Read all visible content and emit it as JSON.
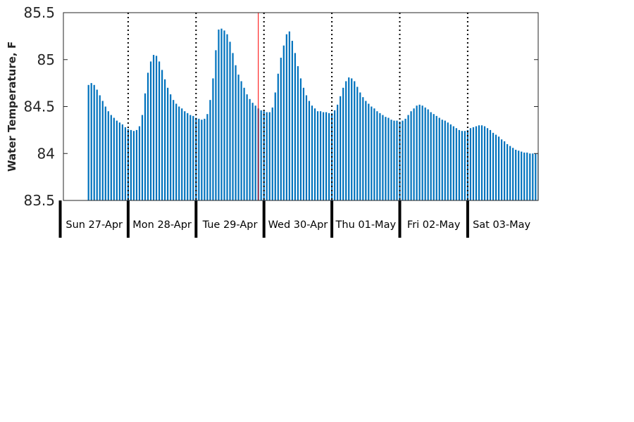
{
  "chart_data": {
    "type": "bar",
    "title": "",
    "xlabel": "",
    "ylabel": "Water Temperature, F",
    "ylim": [
      83.5,
      85.5
    ],
    "yticks": [
      "83.5",
      "84",
      "84.5",
      "85",
      "85.5"
    ],
    "grid": false,
    "legend": "none",
    "bar_color": "#0072bd",
    "interval_hours": 1,
    "start": "2020-04-27T10:00",
    "day_labels": [
      "Sun 27-Apr",
      "Mon 28-Apr",
      "Tue 29-Apr",
      "Wed 30-Apr",
      "Thu 01-May",
      "Fri 02-May",
      "Sat 03-May"
    ],
    "day_separators": [
      "2020-04-28T00:00",
      "2020-04-29T00:00",
      "2020-04-30T00:00",
      "2020-05-01T00:00",
      "2020-05-02T00:00",
      "2020-05-03T00:00"
    ],
    "current_time_marker": {
      "time": "2020-04-29T22:00",
      "color": "#ff0000"
    },
    "values": [
      84.73,
      84.75,
      84.73,
      84.68,
      84.62,
      84.56,
      84.5,
      84.45,
      84.41,
      84.38,
      84.35,
      84.33,
      84.31,
      84.28,
      84.26,
      84.25,
      84.24,
      84.25,
      84.29,
      84.41,
      84.64,
      84.86,
      84.98,
      85.05,
      85.04,
      84.98,
      84.89,
      84.79,
      84.7,
      84.63,
      84.57,
      84.53,
      84.5,
      84.48,
      84.45,
      84.43,
      84.41,
      84.4,
      84.38,
      84.37,
      84.36,
      84.37,
      84.42,
      84.57,
      84.8,
      85.1,
      85.32,
      85.33,
      85.31,
      85.27,
      85.19,
      85.07,
      84.94,
      84.84,
      84.77,
      84.7,
      84.63,
      84.58,
      84.54,
      84.51,
      84.48,
      84.46,
      84.45,
      84.44,
      84.44,
      84.49,
      84.65,
      84.85,
      85.02,
      85.15,
      85.27,
      85.3,
      85.2,
      85.07,
      84.93,
      84.8,
      84.7,
      84.62,
      84.56,
      84.51,
      84.48,
      84.45,
      84.45,
      84.44,
      84.44,
      84.43,
      84.43,
      84.46,
      84.52,
      84.61,
      84.7,
      84.77,
      84.81,
      84.8,
      84.77,
      84.71,
      84.65,
      84.6,
      84.56,
      84.53,
      84.5,
      84.48,
      84.45,
      84.43,
      84.41,
      84.39,
      84.38,
      84.36,
      84.35,
      84.35,
      84.34,
      84.35,
      84.37,
      84.41,
      84.45,
      84.48,
      84.51,
      84.52,
      84.51,
      84.49,
      84.47,
      84.44,
      84.42,
      84.4,
      84.38,
      84.36,
      84.35,
      84.33,
      84.31,
      84.29,
      84.27,
      84.25,
      84.24,
      84.24,
      84.25,
      84.27,
      84.28,
      84.29,
      84.3,
      84.3,
      84.29,
      84.27,
      84.25,
      84.22,
      84.2,
      84.18,
      84.15,
      84.13,
      84.1,
      84.08,
      84.06,
      84.04,
      84.03,
      84.02,
      84.01,
      84.01,
      84.0,
      84.0,
      84.0,
      84.0,
      84.0,
      83.99,
      83.99
    ]
  }
}
